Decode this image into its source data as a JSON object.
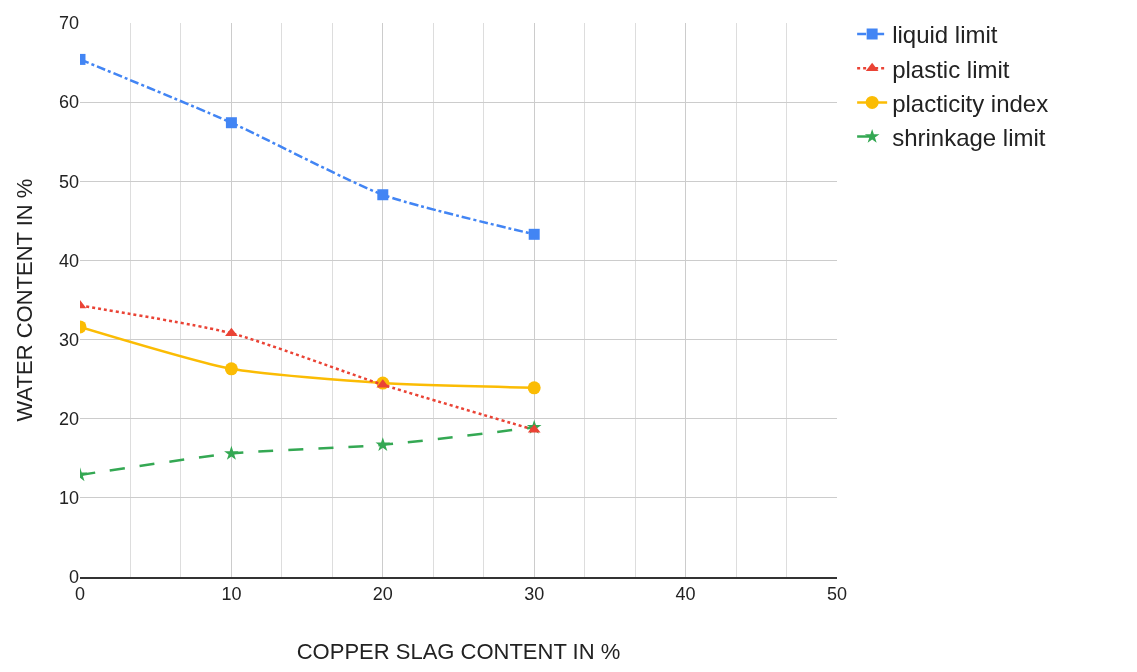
{
  "chart_data": {
    "type": "line",
    "xlabel": "COPPER SLAG CONTENT IN %",
    "ylabel": "WATER CONTENT IN %",
    "x": [
      0,
      10,
      20,
      30
    ],
    "series": [
      {
        "name": "liquid limit",
        "color": "#4285f4",
        "marker": "square",
        "line_style": "dashdot",
        "values": [
          65.4,
          57.4,
          48.3,
          43.3
        ]
      },
      {
        "name": "plastic limit",
        "color": "#ea4335",
        "marker": "triangle",
        "line_style": "dotted",
        "values": [
          34.3,
          30.8,
          24.3,
          18.6
        ]
      },
      {
        "name": "placticity index",
        "color": "#fbbc04",
        "marker": "circle",
        "line_style": "solid",
        "values": [
          31.6,
          26.3,
          24.5,
          23.9
        ]
      },
      {
        "name": "shrinkage limit",
        "color": "#34a853",
        "marker": "star",
        "line_style": "dashed",
        "values": [
          12.9,
          15.6,
          16.7,
          18.9
        ]
      }
    ],
    "xlim": [
      0,
      50
    ],
    "xticks": [
      0,
      10,
      20,
      30,
      40,
      50
    ],
    "ylim": [
      0,
      70
    ],
    "yticks": [
      0,
      10,
      20,
      30,
      40,
      50,
      60,
      70
    ],
    "grid": true,
    "legend": "top right"
  }
}
